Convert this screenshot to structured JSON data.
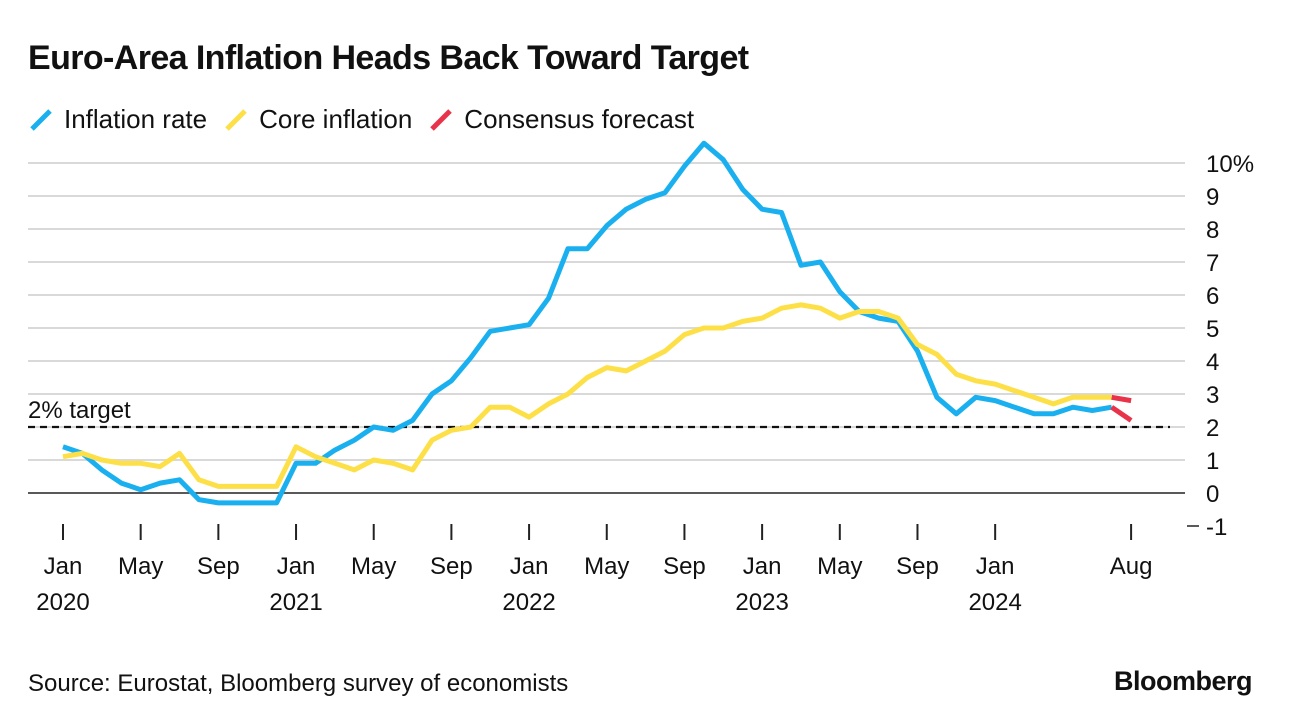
{
  "title": "Euro-Area Inflation Heads Back Toward Target",
  "source": "Source: Eurostat, Bloomberg survey of economists",
  "logo": "Bloomberg",
  "legend": [
    {
      "label": "Inflation rate",
      "color": "#1ab0f0"
    },
    {
      "label": "Core inflation",
      "color": "#fde047"
    },
    {
      "label": "Consensus forecast",
      "color": "#e8334a"
    }
  ],
  "chart_data": {
    "type": "line",
    "x_start": "2020-01",
    "ylim": [
      -1,
      10
    ],
    "y_ticks": [
      {
        "value": 10,
        "label": "10%"
      },
      {
        "value": 9,
        "label": "9"
      },
      {
        "value": 8,
        "label": "8"
      },
      {
        "value": 7,
        "label": "7"
      },
      {
        "value": 6,
        "label": "6"
      },
      {
        "value": 5,
        "label": "5"
      },
      {
        "value": 4,
        "label": "4"
      },
      {
        "value": 3,
        "label": "3"
      },
      {
        "value": 2,
        "label": "2"
      },
      {
        "value": 1,
        "label": "1"
      },
      {
        "value": 0,
        "label": "0"
      },
      {
        "value": -1,
        "label": "-1"
      }
    ],
    "x_ticks": [
      {
        "date": "2020-01",
        "month": "Jan",
        "year": "2020"
      },
      {
        "date": "2020-05",
        "month": "May",
        "year": ""
      },
      {
        "date": "2020-09",
        "month": "Sep",
        "year": ""
      },
      {
        "date": "2021-01",
        "month": "Jan",
        "year": "2021"
      },
      {
        "date": "2021-05",
        "month": "May",
        "year": ""
      },
      {
        "date": "2021-09",
        "month": "Sep",
        "year": ""
      },
      {
        "date": "2022-01",
        "month": "Jan",
        "year": "2022"
      },
      {
        "date": "2022-05",
        "month": "May",
        "year": ""
      },
      {
        "date": "2022-09",
        "month": "Sep",
        "year": ""
      },
      {
        "date": "2023-01",
        "month": "Jan",
        "year": "2023"
      },
      {
        "date": "2023-05",
        "month": "May",
        "year": ""
      },
      {
        "date": "2023-09",
        "month": "Sep",
        "year": ""
      },
      {
        "date": "2024-01",
        "month": "Jan",
        "year": "2024"
      },
      {
        "date": "2024-08",
        "month": "Aug",
        "year": ""
      }
    ],
    "target": {
      "value": 2,
      "label": "2% target"
    },
    "grid": true,
    "legend_position": "top-left",
    "series": [
      {
        "name": "Inflation rate",
        "color": "#1ab0f0",
        "start": "2020-01",
        "values": [
          1.4,
          1.2,
          0.7,
          0.3,
          0.1,
          0.3,
          0.4,
          -0.2,
          -0.3,
          -0.3,
          -0.3,
          -0.3,
          0.9,
          0.9,
          1.3,
          1.6,
          2.0,
          1.9,
          2.2,
          3.0,
          3.4,
          4.1,
          4.9,
          5.0,
          5.1,
          5.9,
          7.4,
          7.4,
          8.1,
          8.6,
          8.9,
          9.1,
          9.9,
          10.6,
          10.1,
          9.2,
          8.6,
          8.5,
          6.9,
          7.0,
          6.1,
          5.5,
          5.3,
          5.2,
          4.3,
          2.9,
          2.4,
          2.9,
          2.8,
          2.6,
          2.4,
          2.4,
          2.6,
          2.5,
          2.6
        ]
      },
      {
        "name": "Core inflation",
        "color": "#fde047",
        "start": "2020-01",
        "values": [
          1.1,
          1.2,
          1.0,
          0.9,
          0.9,
          0.8,
          1.2,
          0.4,
          0.2,
          0.2,
          0.2,
          0.2,
          1.4,
          1.1,
          0.9,
          0.7,
          1.0,
          0.9,
          0.7,
          1.6,
          1.9,
          2.0,
          2.6,
          2.6,
          2.3,
          2.7,
          3.0,
          3.5,
          3.8,
          3.7,
          4.0,
          4.3,
          4.8,
          5.0,
          5.0,
          5.2,
          5.3,
          5.6,
          5.7,
          5.6,
          5.3,
          5.5,
          5.5,
          5.3,
          4.5,
          4.2,
          3.6,
          3.4,
          3.3,
          3.1,
          2.9,
          2.7,
          2.9,
          2.9,
          2.9
        ]
      },
      {
        "name": "Consensus forecast",
        "color": "#e8334a",
        "segments": [
          {
            "from": {
              "date": "2024-07",
              "value": 2.6
            },
            "to": {
              "date": "2024-08",
              "value": 2.2
            }
          },
          {
            "from": {
              "date": "2024-07",
              "value": 2.9
            },
            "to": {
              "date": "2024-08",
              "value": 2.8
            }
          }
        ]
      }
    ]
  }
}
